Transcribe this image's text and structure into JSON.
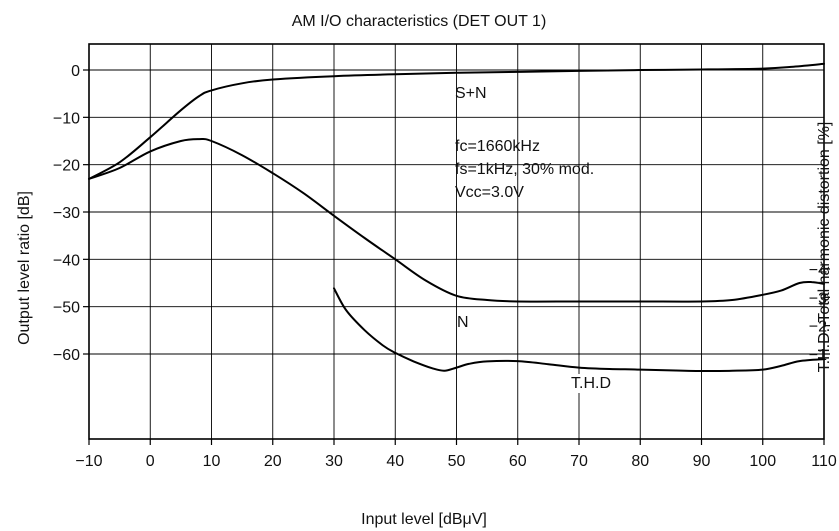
{
  "chart_data": {
    "type": "line",
    "title": "AM I/O characteristics  (DET OUT 1)",
    "xlabel": "Input level [dBμV]",
    "ylabel": "Output level ratio [dB]",
    "ylabel_right": "T.H.D.-Total harmonic distortion [%]",
    "xlim": [
      -10,
      110
    ],
    "ylim": [
      -70,
      5
    ],
    "ylim_right": [
      0,
      5
    ],
    "grid": true,
    "x_ticks": [
      "−10",
      "0",
      "10",
      "20",
      "30",
      "40",
      "50",
      "60",
      "70",
      "80",
      "90",
      "100",
      "110"
    ],
    "y_ticks": [
      "0",
      "−10",
      "−20",
      "−30",
      "−40",
      "−50",
      "−60"
    ],
    "y_right_ticks": [
      "−4",
      "−3",
      "−2",
      "−1"
    ],
    "annotations": [
      "fc=1660kHz",
      "fs=1kHz, 30% mod.",
      "Vcc=3.0V"
    ],
    "series": [
      {
        "name": "S+N",
        "axis": "left",
        "x": [
          -10,
          -5,
          0,
          5,
          8,
          10,
          15,
          20,
          30,
          40,
          50,
          60,
          70,
          80,
          90,
          100,
          105,
          110
        ],
        "y": [
          -23,
          -19.5,
          -14.2,
          -8.5,
          -5.5,
          -4.3,
          -2.8,
          -2.0,
          -1.3,
          -0.9,
          -0.6,
          -0.4,
          -0.2,
          0,
          0.1,
          0.3,
          0.7,
          1.3
        ]
      },
      {
        "name": "N",
        "axis": "left",
        "x": [
          -10,
          -5,
          0,
          5,
          8,
          10,
          15,
          20,
          25,
          30,
          35,
          40,
          45,
          50,
          55,
          60,
          70,
          80,
          90,
          95,
          100,
          103,
          106,
          108,
          110
        ],
        "y": [
          -23,
          -20.7,
          -17.2,
          -15.0,
          -14.6,
          -15.0,
          -18.0,
          -21.8,
          -26.0,
          -30.8,
          -35.5,
          -40.0,
          -44.5,
          -47.7,
          -48.6,
          -48.9,
          -48.9,
          -48.9,
          -48.9,
          -48.6,
          -47.5,
          -46.6,
          -45.0,
          -44.8,
          -45.2
        ]
      },
      {
        "name": "T.H.D",
        "axis": "right",
        "x": [
          30,
          32,
          35,
          38,
          40,
          43,
          46,
          48,
          50,
          52,
          55,
          60,
          65,
          70,
          75,
          80,
          85,
          90,
          95,
          100,
          103,
          106,
          110
        ],
        "y": [
          3.32,
          2.54,
          1.84,
          1.3,
          1.04,
          0.74,
          0.5,
          0.41,
          0.52,
          0.65,
          0.74,
          0.75,
          0.64,
          0.52,
          0.47,
          0.45,
          0.42,
          0.4,
          0.41,
          0.45,
          0.58,
          0.75,
          0.82
        ]
      }
    ]
  }
}
